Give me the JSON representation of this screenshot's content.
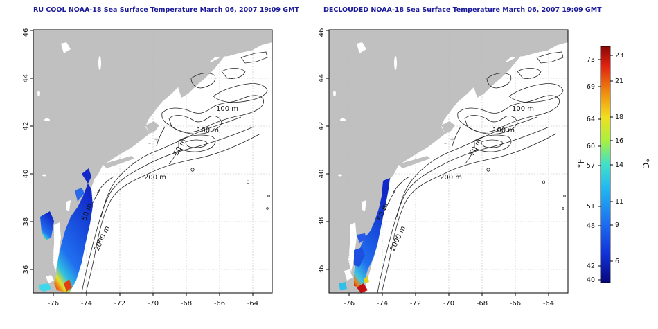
{
  "panels": [
    {
      "title": "RU COOL NOAA-18 Sea Surface Temperature March 06, 2007 19:09 GMT",
      "contour_labels": [
        "100 m",
        "100 m",
        "50 m",
        "200 m",
        "50 m",
        "2000 m"
      ]
    },
    {
      "title": "DECLOUDED NOAA-18 Sea Surface Temperature March 06, 2007 19:09 GMT",
      "contour_labels": [
        "100 m",
        "100 m",
        "50 m",
        "200 m",
        "50 m",
        "2000 m"
      ]
    }
  ],
  "axes": {
    "x_ticks": [
      "-76",
      "-74",
      "-72",
      "-70",
      "-68",
      "-66",
      "-64"
    ],
    "y_ticks": [
      "36",
      "38",
      "40",
      "42",
      "44",
      "46"
    ],
    "x_range": [
      -77.2,
      -62.8
    ],
    "y_range": [
      35.0,
      46.0
    ],
    "grid": "dotted"
  },
  "colorbar": {
    "f_label": "°F",
    "c_label": "°C",
    "f_ticks": [
      "73",
      "69",
      "64",
      "60",
      "57",
      "51",
      "48",
      "42",
      "40"
    ],
    "c_ticks": [
      "23",
      "21",
      "18",
      "16",
      "14",
      "11",
      "9",
      "6"
    ],
    "colors": [
      "#08087a",
      "#1030d8",
      "#1e6ef0",
      "#22b8f0",
      "#40e0c8",
      "#a8f040",
      "#f0e020",
      "#f09010",
      "#e02010",
      "#8a0808"
    ]
  },
  "colors": {
    "land": "#c0c0c0",
    "title": "#1a1a9a",
    "contour": "#222222"
  }
}
